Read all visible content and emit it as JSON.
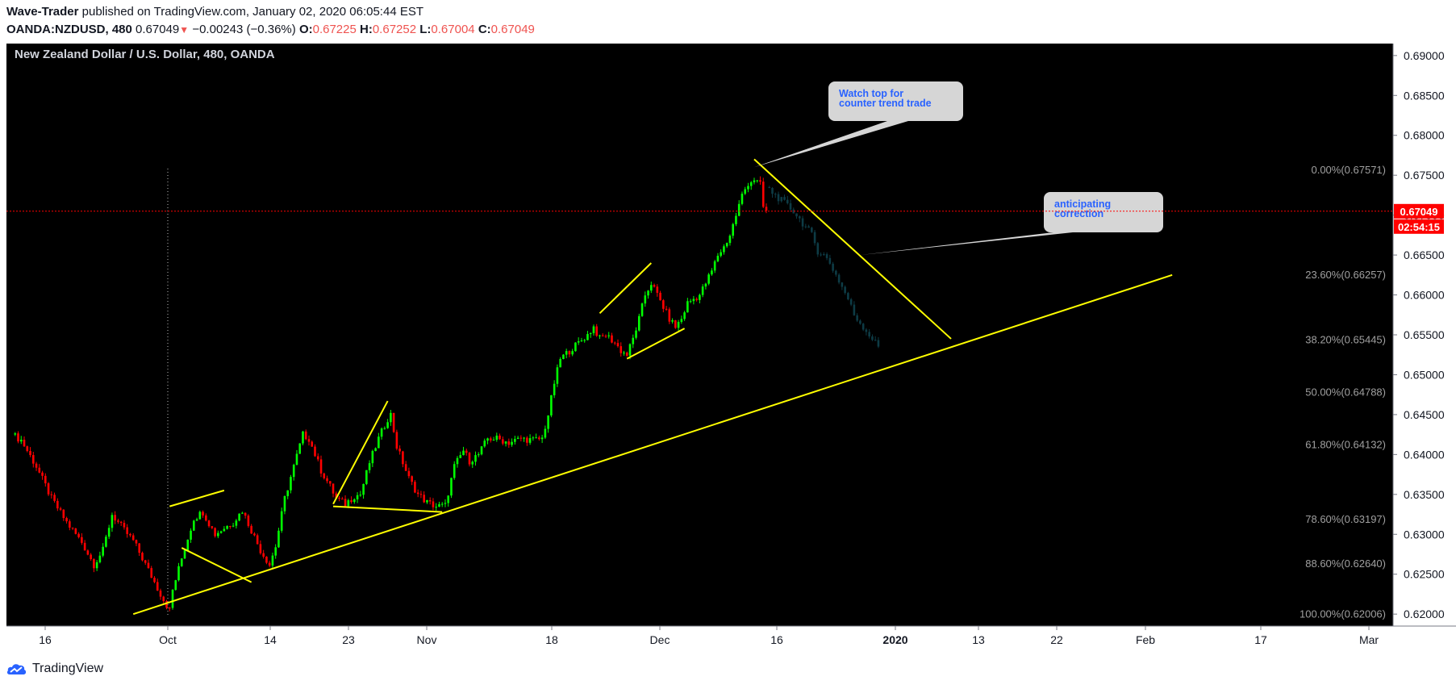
{
  "header": {
    "author": "Wave-Trader",
    "published_text": "published on TradingView.com, January 02, 2020 06:05:44 EST",
    "symbol": "OANDA:NZDUSD, 480",
    "last_price": "0.67049",
    "change_arrow": "▼",
    "change": "−0.00243 (−0.36%)",
    "o_label": "O:",
    "o_value": "0.67225",
    "h_label": "H:",
    "h_value": "0.67252",
    "l_label": "L:",
    "l_value": "0.67004",
    "c_label": "C:",
    "c_value": "0.67049"
  },
  "footer": {
    "brand": "TradingView"
  },
  "colors": {
    "background": "#000000",
    "up_candle": "#00ff00",
    "down_candle": "#ff0000",
    "projection_candle": "#0d3b45",
    "trendline": "#ffff00",
    "price_tag": "#ff0000",
    "fib_label": "#a0a0a0",
    "callout_bg": "#d6d6d6",
    "callout_text": "#2962ff"
  },
  "chart_data": {
    "type": "candlestick",
    "title": "New Zealand Dollar / U.S. Dollar, 480, OANDA",
    "ylim": [
      0.6185,
      0.6915
    ],
    "y_ticks": [
      "0.69000",
      "0.68500",
      "0.68000",
      "0.67500",
      "0.67000",
      "0.66500",
      "0.66000",
      "0.65500",
      "0.65000",
      "0.64500",
      "0.64000",
      "0.63500",
      "0.63000",
      "0.62500",
      "0.62000"
    ],
    "x_ticks": [
      "16",
      "Oct",
      "14",
      "23",
      "Nov",
      "18",
      "Dec",
      "16",
      "2020",
      "13",
      "22",
      "Feb",
      "17",
      "Mar"
    ],
    "current_price": {
      "price": 0.67049,
      "label": "0.67049",
      "countdown": "02:54:15"
    },
    "fibonacci_levels": [
      {
        "label": "0.00%(0.67571)",
        "price": 0.67571
      },
      {
        "label": "23.60%(0.66257)",
        "price": 0.66257
      },
      {
        "label": "38.20%(0.65445)",
        "price": 0.65445
      },
      {
        "label": "50.00%(0.64788)",
        "price": 0.64788
      },
      {
        "label": "61.80%(0.64132)",
        "price": 0.64132
      },
      {
        "label": "78.60%(0.63197)",
        "price": 0.63197
      },
      {
        "label": "88.60%(0.62640)",
        "price": 0.6264
      },
      {
        "label": "100.00%(0.62006)",
        "price": 0.62006
      }
    ],
    "price_path": [
      [
        0,
        0.6425
      ],
      [
        3,
        0.6418
      ],
      [
        8,
        0.6385
      ],
      [
        13,
        0.6345
      ],
      [
        18,
        0.6315
      ],
      [
        23,
        0.629
      ],
      [
        27,
        0.6262
      ],
      [
        30,
        0.628
      ],
      [
        33,
        0.6325
      ],
      [
        37,
        0.6305
      ],
      [
        40,
        0.6292
      ],
      [
        43,
        0.627
      ],
      [
        47,
        0.624
      ],
      [
        50,
        0.6218
      ],
      [
        52,
        0.6205
      ],
      [
        53,
        0.623
      ],
      [
        56,
        0.627
      ],
      [
        60,
        0.632
      ],
      [
        63,
        0.6328
      ],
      [
        67,
        0.63
      ],
      [
        70,
        0.6308
      ],
      [
        73,
        0.6315
      ],
      [
        76,
        0.633
      ],
      [
        79,
        0.6305
      ],
      [
        82,
        0.628
      ],
      [
        85,
        0.6262
      ],
      [
        87,
        0.6285
      ],
      [
        90,
        0.6345
      ],
      [
        93,
        0.6385
      ],
      [
        96,
        0.6425
      ],
      [
        98,
        0.642
      ],
      [
        100,
        0.64
      ],
      [
        102,
        0.638
      ],
      [
        105,
        0.636
      ],
      [
        107,
        0.6345
      ],
      [
        110,
        0.6338
      ],
      [
        113,
        0.6348
      ],
      [
        115,
        0.635
      ],
      [
        118,
        0.639
      ],
      [
        121,
        0.642
      ],
      [
        124,
        0.6445
      ],
      [
        125,
        0.645
      ],
      [
        127,
        0.641
      ],
      [
        129,
        0.639
      ],
      [
        131,
        0.637
      ],
      [
        134,
        0.635
      ],
      [
        137,
        0.634
      ],
      [
        140,
        0.6335
      ],
      [
        143,
        0.6336
      ],
      [
        146,
        0.6385
      ],
      [
        149,
        0.6405
      ],
      [
        151,
        0.6392
      ],
      [
        154,
        0.64
      ],
      [
        157,
        0.642
      ],
      [
        160,
        0.642
      ],
      [
        164,
        0.6415
      ],
      [
        168,
        0.642
      ],
      [
        172,
        0.6418
      ],
      [
        175,
        0.642
      ],
      [
        177,
        0.645
      ],
      [
        179,
        0.649
      ],
      [
        181,
        0.652
      ],
      [
        184,
        0.653
      ],
      [
        187,
        0.654
      ],
      [
        190,
        0.655
      ],
      [
        192,
        0.656
      ],
      [
        194,
        0.6545
      ],
      [
        196,
        0.655
      ],
      [
        199,
        0.654
      ],
      [
        201,
        0.653
      ],
      [
        203,
        0.6525
      ],
      [
        205,
        0.6545
      ],
      [
        207,
        0.657
      ],
      [
        209,
        0.66
      ],
      [
        211,
        0.6615
      ],
      [
        213,
        0.66
      ],
      [
        215,
        0.6585
      ],
      [
        217,
        0.657
      ],
      [
        219,
        0.656
      ],
      [
        221,
        0.657
      ],
      [
        223,
        0.659
      ],
      [
        225,
        0.6595
      ],
      [
        227,
        0.66
      ],
      [
        229,
        0.6615
      ],
      [
        231,
        0.663
      ],
      [
        233,
        0.665
      ],
      [
        235,
        0.666
      ],
      [
        237,
        0.6675
      ],
      [
        239,
        0.67
      ],
      [
        241,
        0.6725
      ],
      [
        243,
        0.674
      ],
      [
        245,
        0.6745
      ],
      [
        247,
        0.6738
      ],
      [
        248,
        0.671
      ],
      [
        249,
        0.6705
      ]
    ],
    "projection_path": [
      [
        249,
        0.6735
      ],
      [
        252,
        0.6725
      ],
      [
        255,
        0.6715
      ],
      [
        258,
        0.6705
      ],
      [
        261,
        0.669
      ],
      [
        264,
        0.6675
      ],
      [
        266,
        0.6655
      ],
      [
        268,
        0.665
      ],
      [
        270,
        0.664
      ],
      [
        272,
        0.6625
      ],
      [
        274,
        0.661
      ],
      [
        276,
        0.6595
      ],
      [
        278,
        0.6575
      ],
      [
        280,
        0.6565
      ],
      [
        282,
        0.6555
      ],
      [
        284,
        0.6545
      ],
      [
        286,
        0.6535
      ]
    ],
    "trendlines": [
      {
        "from": [
          40,
          0.62
        ],
        "to": [
          383,
          0.6625
        ]
      },
      {
        "from": [
          245,
          0.677
        ],
        "to": [
          310,
          0.6545
        ]
      },
      {
        "from": [
          52,
          0.6335
        ],
        "to": [
          70,
          0.6355
        ]
      },
      {
        "from": [
          56,
          0.6283
        ],
        "to": [
          79,
          0.624
        ]
      },
      {
        "from": [
          106,
          0.6338
        ],
        "to": [
          124,
          0.6467
        ]
      },
      {
        "from": [
          106,
          0.6335
        ],
        "to": [
          142,
          0.6328
        ]
      },
      {
        "from": [
          194,
          0.6577
        ],
        "to": [
          211,
          0.664
        ]
      },
      {
        "from": [
          203,
          0.652
        ],
        "to": [
          222,
          0.6558
        ]
      }
    ],
    "annotations": [
      {
        "text": "Watch top for\ncounter trend trade",
        "anchor": [
          245,
          0.676
        ]
      },
      {
        "text": "anticipating\ncorrection",
        "anchor": [
          280,
          0.665
        ]
      }
    ]
  }
}
